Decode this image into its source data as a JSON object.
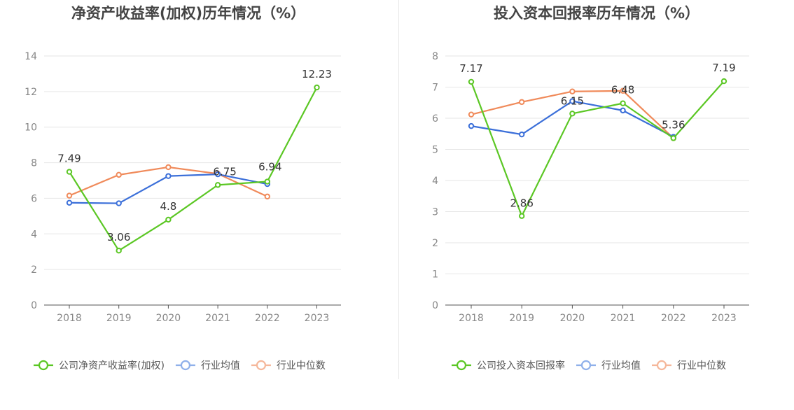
{
  "colors": {
    "company": "#5bc724",
    "industry_avg": "#3b6fd9",
    "industry_median": "#f08a5a",
    "grid": "#e6e6e6",
    "axis": "#555555",
    "tick": "#888888",
    "title": "#444444",
    "label": "#333333",
    "legend_text": "#555555",
    "legend_avg_light": "#8fb0ea",
    "legend_median_light": "#f5b79a"
  },
  "chart_data": [
    {
      "type": "line",
      "title": "净资产收益率(加权)历年情况（%）",
      "categories": [
        "2018",
        "2019",
        "2020",
        "2021",
        "2022",
        "2023"
      ],
      "ylim": [
        0,
        14
      ],
      "yticks": [
        0,
        2,
        4,
        6,
        8,
        10,
        12,
        14
      ],
      "grid": true,
      "legend_position": "bottom",
      "series": [
        {
          "name": "公司净资产收益率(加权)",
          "key": "company",
          "values": [
            7.49,
            3.06,
            4.8,
            6.75,
            6.94,
            12.23
          ],
          "labels": [
            "7.49",
            "3.06",
            "4.8",
            "6.75",
            "6.94",
            "12.23"
          ]
        },
        {
          "name": "行业均值",
          "key": "industry_avg",
          "values": [
            5.75,
            5.72,
            7.25,
            7.35,
            6.8,
            null
          ]
        },
        {
          "name": "行业中位数",
          "key": "industry_median",
          "values": [
            6.15,
            7.32,
            7.75,
            7.38,
            6.1,
            null
          ]
        }
      ]
    },
    {
      "type": "line",
      "title": "投入资本回报率历年情况（%）",
      "categories": [
        "2018",
        "2019",
        "2020",
        "2021",
        "2022",
        "2023"
      ],
      "ylim": [
        0,
        8
      ],
      "yticks": [
        0,
        1,
        2,
        3,
        4,
        5,
        6,
        7,
        8
      ],
      "grid": true,
      "legend_position": "bottom",
      "series": [
        {
          "name": "公司投入资本回报率",
          "key": "company",
          "values": [
            7.17,
            2.86,
            6.15,
            6.48,
            5.36,
            7.19
          ],
          "labels": [
            "7.17",
            "2.86",
            "6.15",
            "6.48",
            "5.36",
            "7.19"
          ]
        },
        {
          "name": "行业均值",
          "key": "industry_avg",
          "values": [
            5.75,
            5.48,
            6.55,
            6.25,
            5.4,
            null
          ]
        },
        {
          "name": "行业中位数",
          "key": "industry_median",
          "values": [
            6.12,
            6.52,
            6.86,
            6.88,
            5.36,
            null
          ]
        }
      ]
    }
  ]
}
